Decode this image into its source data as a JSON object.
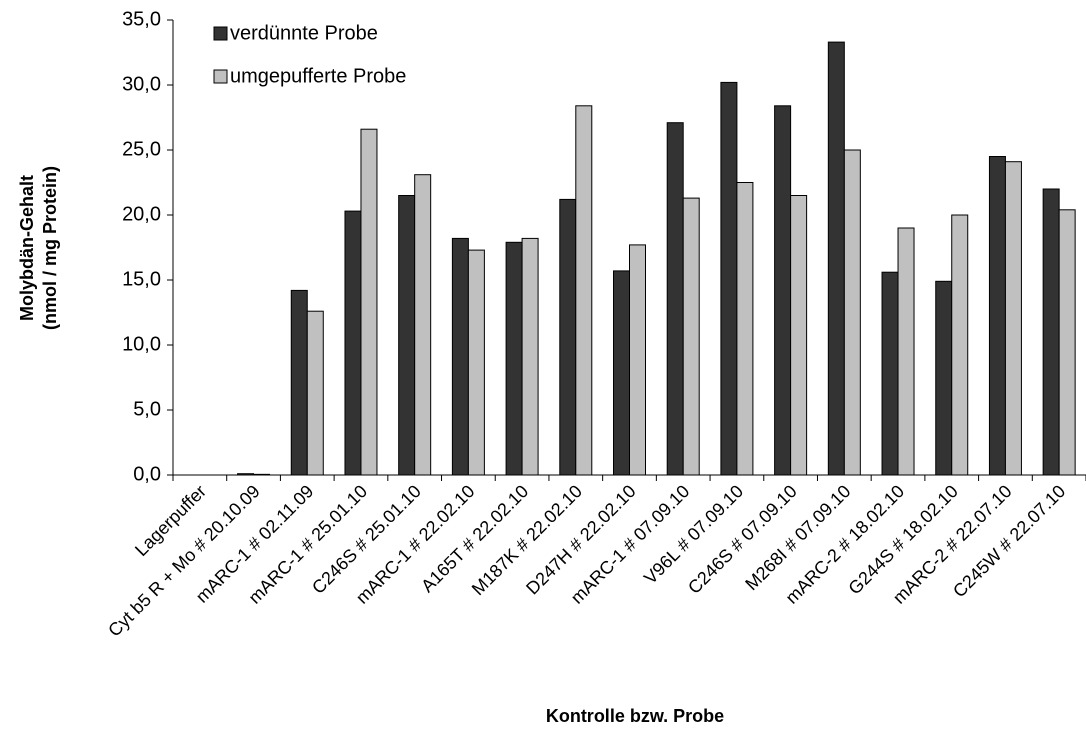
{
  "chart_data": {
    "type": "bar",
    "x_label": "Kontrolle bzw. Probe",
    "y_label": [
      "Molybdän-Gehalt",
      "(nmol / mg Protein)"
    ],
    "categories": [
      "Lagerpuffer",
      "Cyt b5 R + Mo # 20.10.09",
      "mARC-1 # 02.11.09",
      "mARC-1 # 25.01.10",
      "C246S # 25.01.10",
      "mARC-1 # 22.02.10",
      "A165T # 22.02.10",
      "M187K # 22.02.10",
      "D247H # 22.02.10",
      "mARC-1 # 07.09.10",
      "V96L # 07.09.10",
      "C246S # 07.09.10",
      "M268I # 07.09.10",
      "mARC-2 # 18.02.10",
      "G244S # 18.02.10",
      "mARC-2 # 22.07.10",
      "C245W # 22.07.10"
    ],
    "series": [
      {
        "name": "verdünnte Probe",
        "color": "#333333",
        "values": [
          0,
          0.1,
          14.2,
          20.3,
          21.5,
          18.2,
          17.9,
          21.2,
          15.7,
          27.1,
          30.2,
          28.4,
          33.3,
          15.6,
          14.9,
          24.5,
          22.0
        ]
      },
      {
        "name": "umgepufferte Probe",
        "color": "#c0c0c0",
        "values": [
          0,
          0.05,
          12.6,
          26.6,
          23.1,
          17.3,
          18.2,
          28.4,
          17.7,
          21.3,
          22.5,
          21.5,
          25.0,
          19.0,
          20.0,
          24.1,
          20.4
        ]
      }
    ],
    "ylim": [
      0,
      35
    ],
    "yticks": [
      {
        "value": 0,
        "label": "0,0"
      },
      {
        "value": 5,
        "label": "5,0"
      },
      {
        "value": 10,
        "label": "10,0"
      },
      {
        "value": 15,
        "label": "15,0"
      },
      {
        "value": 20,
        "label": "20,0"
      },
      {
        "value": 25,
        "label": "25,0"
      },
      {
        "value": 30,
        "label": "30,0"
      },
      {
        "value": 35,
        "label": "35,0"
      }
    ],
    "legend": "top-left"
  }
}
